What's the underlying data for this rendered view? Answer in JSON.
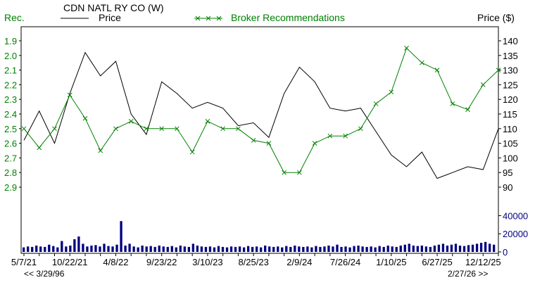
{
  "header": {
    "left_axis_label": "Rec.",
    "company": "CDN NATL RY CO (W)",
    "price_legend": "Price",
    "broker_legend": "Broker Recommendations",
    "right_axis_label": "Price ($)"
  },
  "nav": {
    "back_label": "<< 3/29/96",
    "forward_label": "2/27/26 >>"
  },
  "colors": {
    "price": "#000000",
    "broker": "#008000",
    "volume": "#000080",
    "rec_axis_text": "#008000",
    "price_axis_text": "#000000",
    "volume_axis_text": "#000080"
  },
  "chart_data": [
    {
      "type": "line",
      "title": "",
      "x": [
        "5/7/21",
        "7/21",
        "9/21",
        "10/22/21",
        "12/21",
        "2/22",
        "4/8/22",
        "6/22",
        "7/22",
        "9/23/22",
        "11/22",
        "1/23",
        "3/10/23",
        "5/23",
        "6/23",
        "8/25/23",
        "10/23",
        "12/23",
        "2/9/24",
        "4/24",
        "6/24",
        "7/26/24",
        "9/24",
        "11/24",
        "1/10/25",
        "3/25",
        "5/25",
        "6/27/25",
        "8/25",
        "10/25",
        "12/12/25",
        "2/27/26"
      ],
      "x_ticks": [
        "5/7/21",
        "10/22/21",
        "4/8/22",
        "9/23/22",
        "3/10/23",
        "8/25/23",
        "2/9/24",
        "7/26/24",
        "1/10/25",
        "6/27/25",
        "12/12/25"
      ],
      "y_left_ticks": [
        "1.9",
        "2.0",
        "2.1",
        "2.2",
        "2.3",
        "2.4",
        "2.5",
        "2.6",
        "2.7",
        "2.8",
        "2.9"
      ],
      "y_left_range": [
        1.9,
        2.9
      ],
      "y_right_ticks": [
        "140",
        "135",
        "130",
        "125",
        "120",
        "115",
        "110",
        "105",
        "100",
        "95",
        "90"
      ],
      "y_right_range": [
        90,
        140
      ],
      "series": [
        {
          "name": "Price",
          "axis": "right",
          "values": [
            106,
            116,
            105,
            122,
            136,
            128,
            133,
            115,
            108,
            126,
            122,
            117,
            119,
            117,
            111,
            112,
            107,
            122,
            131,
            126,
            117,
            116,
            117,
            109,
            101,
            97,
            102,
            93,
            95,
            97,
            96,
            110
          ]
        },
        {
          "name": "Broker Recommendations",
          "axis": "left",
          "markers": "x",
          "values": [
            2.5,
            2.63,
            2.5,
            2.27,
            2.43,
            2.65,
            2.5,
            2.45,
            2.5,
            2.5,
            2.5,
            2.66,
            2.45,
            2.5,
            2.5,
            2.58,
            2.6,
            2.8,
            2.8,
            2.6,
            2.55,
            2.55,
            2.5,
            2.33,
            2.25,
            1.95,
            2.05,
            2.1,
            2.33,
            2.37,
            2.2,
            2.1
          ]
        }
      ]
    },
    {
      "type": "bar",
      "title": "",
      "y_ticks": [
        "40000",
        "20000",
        "0"
      ],
      "y_range": [
        0,
        45000
      ],
      "bars": 112,
      "values": [
        5000,
        6000,
        5500,
        7000,
        6000,
        5500,
        8000,
        6500,
        5000,
        12000,
        6000,
        7000,
        14000,
        17000,
        9000,
        6000,
        7000,
        7500,
        6000,
        9000,
        6500,
        6000,
        8000,
        34000,
        7000,
        9000,
        6000,
        5000,
        7000,
        6000,
        6500,
        5500,
        7000,
        6000,
        5500,
        6500,
        5000,
        7000,
        6000,
        5500,
        9000,
        7000,
        6000,
        5500,
        6000,
        5000,
        6500,
        5500,
        5000,
        6000,
        5500,
        6000,
        5000,
        6500,
        5500,
        6000,
        5000,
        7000,
        6000,
        5500,
        6000,
        5000,
        6500,
        5500,
        7000,
        6000,
        5500,
        6000,
        5000,
        6500,
        5500,
        6000,
        7000,
        6000,
        8000,
        5500,
        6000,
        5000,
        6500,
        7000,
        6000,
        5500,
        6000,
        5000,
        6500,
        5500,
        7000,
        6000,
        5500,
        7000,
        8000,
        9000,
        7000,
        6500,
        7000,
        6000,
        5500,
        7000,
        8000,
        9000,
        7000,
        8000,
        9000,
        7000,
        6500,
        7500,
        8000,
        9000,
        10000,
        11000,
        9000,
        8000
      ]
    }
  ]
}
